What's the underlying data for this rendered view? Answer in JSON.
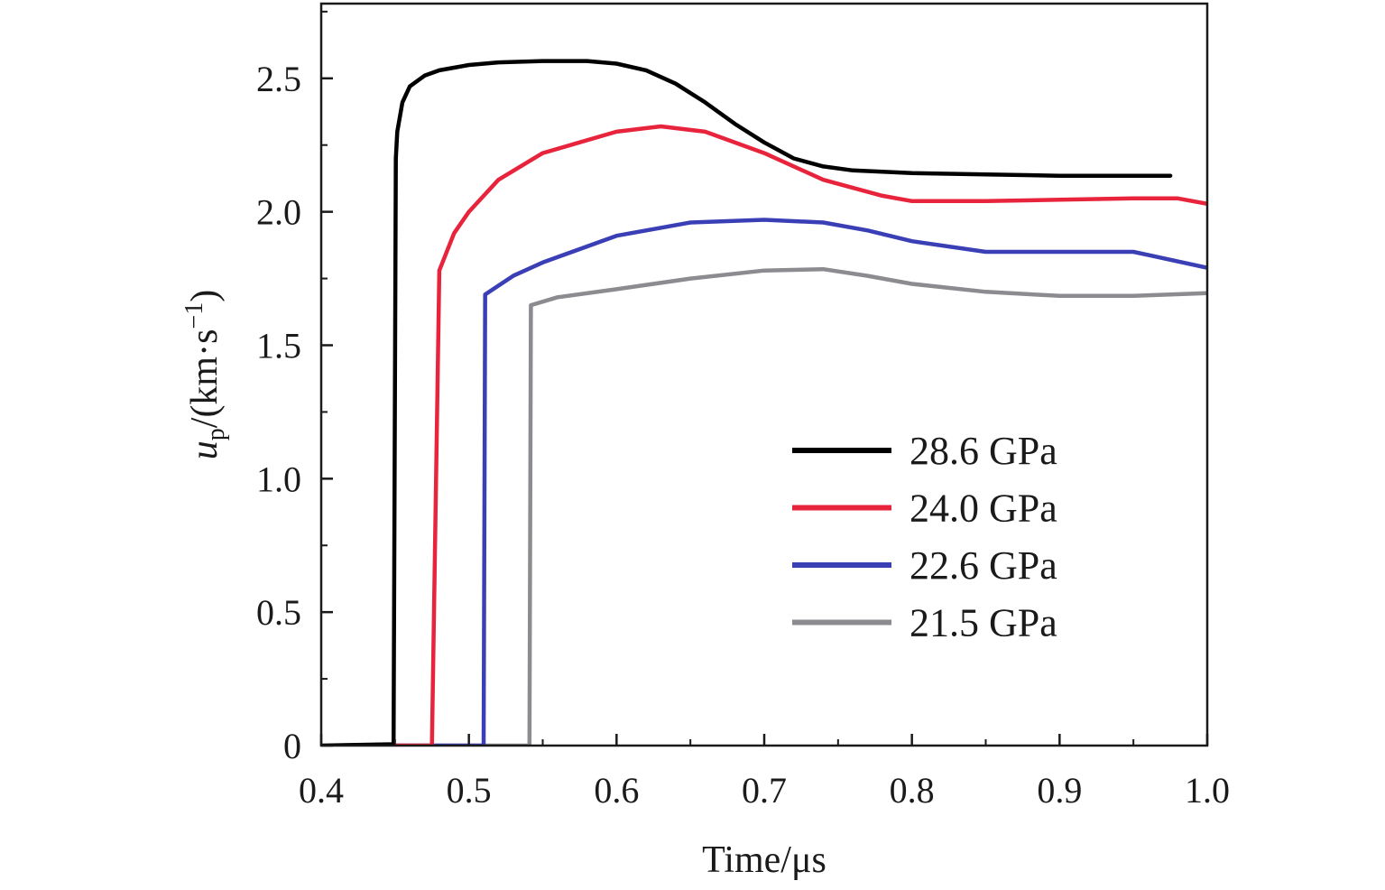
{
  "chart_data": {
    "type": "line",
    "xlabel": "Time/μs",
    "ylabel": {
      "var": "u",
      "sub": "p",
      "units": "/(km·s",
      "sup": "−1",
      "close": ")"
    },
    "xlim": [
      0.4,
      1.0
    ],
    "ylim": [
      0,
      2.78
    ],
    "xticks": [
      0.4,
      0.5,
      0.6,
      0.7,
      0.8,
      0.9,
      1.0
    ],
    "xtick_labels": [
      "0.4",
      "0.5",
      "0.6",
      "0.7",
      "0.8",
      "0.9",
      "1.0"
    ],
    "yticks": [
      0,
      0.5,
      1.0,
      1.5,
      2.0,
      2.5
    ],
    "ytick_labels": [
      "0",
      "0.5",
      "1.0",
      "1.5",
      "2.0",
      "2.5"
    ],
    "grid": false,
    "legend_position": "lower-right",
    "series": [
      {
        "name": "28.6 GPa",
        "color": "#000000",
        "x": [
          0.4,
          0.449,
          0.4505,
          0.4515,
          0.455,
          0.46,
          0.47,
          0.48,
          0.5,
          0.52,
          0.55,
          0.58,
          0.6,
          0.62,
          0.64,
          0.66,
          0.68,
          0.7,
          0.72,
          0.74,
          0.76,
          0.8,
          0.85,
          0.9,
          0.95,
          0.975
        ],
        "y": [
          0,
          0.005,
          2.2,
          2.3,
          2.41,
          2.47,
          2.51,
          2.53,
          2.55,
          2.56,
          2.565,
          2.565,
          2.555,
          2.53,
          2.48,
          2.41,
          2.33,
          2.26,
          2.2,
          2.17,
          2.155,
          2.145,
          2.14,
          2.135,
          2.135,
          2.135
        ]
      },
      {
        "name": "24.0 GPa",
        "color": "#e8243c",
        "x": [
          0.45,
          0.475,
          0.48,
          0.49,
          0.5,
          0.52,
          0.55,
          0.6,
          0.63,
          0.66,
          0.7,
          0.74,
          0.78,
          0.8,
          0.85,
          0.9,
          0.95,
          0.98,
          1.0
        ],
        "y": [
          0,
          0,
          1.78,
          1.92,
          2.0,
          2.12,
          2.22,
          2.3,
          2.32,
          2.3,
          2.22,
          2.12,
          2.06,
          2.04,
          2.04,
          2.045,
          2.05,
          2.05,
          2.03
        ]
      },
      {
        "name": "22.6 GPa",
        "color": "#3b3fb6",
        "x": [
          0.45,
          0.51,
          0.511,
          0.53,
          0.55,
          0.6,
          0.65,
          0.7,
          0.74,
          0.77,
          0.8,
          0.85,
          0.9,
          0.95,
          1.0
        ],
        "y": [
          0,
          0,
          1.69,
          1.76,
          1.81,
          1.91,
          1.96,
          1.97,
          1.96,
          1.93,
          1.89,
          1.85,
          1.85,
          1.85,
          1.79
        ]
      },
      {
        "name": "21.5 GPa",
        "color": "#8c8c90",
        "x": [
          0.45,
          0.541,
          0.542,
          0.56,
          0.6,
          0.65,
          0.7,
          0.74,
          0.77,
          0.8,
          0.85,
          0.9,
          0.95,
          1.0
        ],
        "y": [
          0,
          0,
          1.65,
          1.68,
          1.71,
          1.75,
          1.78,
          1.785,
          1.76,
          1.73,
          1.7,
          1.685,
          1.685,
          1.695
        ]
      }
    ]
  }
}
